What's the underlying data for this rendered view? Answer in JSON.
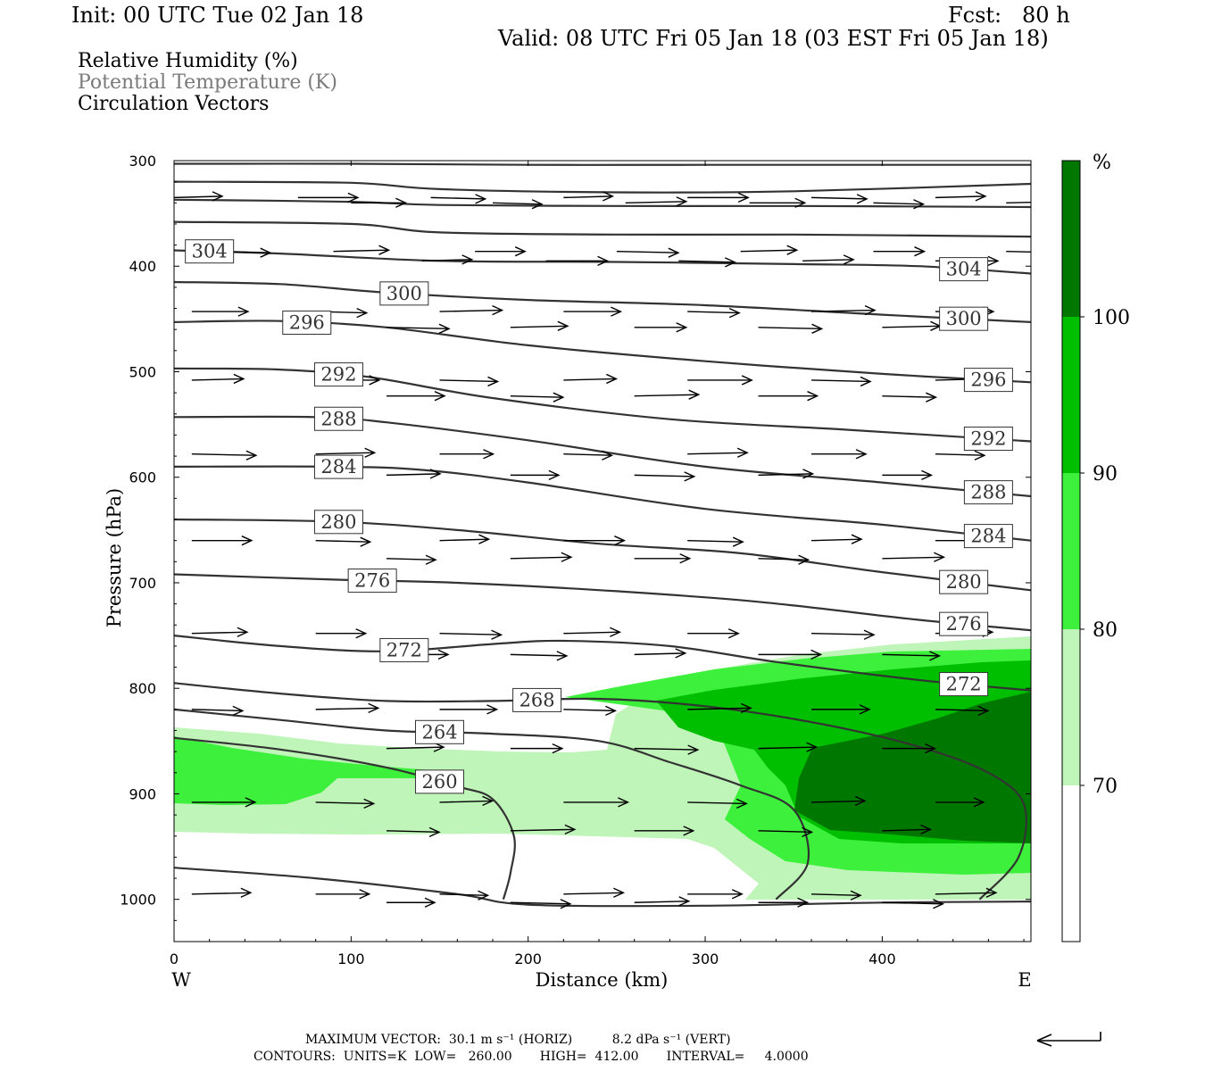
{
  "header": {
    "init": "Init: 00 UTC Tue 02 Jan 18",
    "fcst": "Fcst:   80 h",
    "valid": "Valid: 08 UTC Fri 05 Jan 18 (03 EST Fri 05 Jan 18)"
  },
  "legend": {
    "line1": "Relative Humidity (%)",
    "line2": "Potential Temperature (K)",
    "line3": "Circulation Vectors"
  },
  "footer": {
    "vector_line": "MAXIMUM VECTOR:  30.1 m s⁻¹ (HORIZ)          8.2 dPa s⁻¹ (VERT)",
    "contour_line": "CONTOURS:  UNITS=K  LOW=   260.00       HIGH=  412.00       INTERVAL=     4.0000"
  },
  "colors": {
    "rh_70_80": "#bff5b8",
    "rh_80_90": "#3cf03c",
    "rh_90_100": "#00be00",
    "rh_100": "#007800",
    "theta_line": "#333333",
    "vector": "#000000"
  },
  "chart_data": {
    "type": "contour",
    "x_axis": {
      "label": "Distance (km)",
      "range": [
        0,
        484
      ],
      "ticks": [
        0,
        100,
        200,
        300,
        400
      ],
      "left_end": "W",
      "right_end": "E"
    },
    "y_axis": {
      "label": "Pressure (hPa)",
      "range": [
        300,
        1040
      ],
      "inverted": true,
      "ticks": [
        300,
        400,
        500,
        600,
        700,
        800,
        900,
        1000
      ]
    },
    "colorbar": {
      "unit": "%",
      "levels": [
        70,
        80,
        90,
        100
      ],
      "colors": [
        "#ffffff",
        "#bff5b8",
        "#3cf03c",
        "#00be00",
        "#007800"
      ]
    },
    "theta_contours": [
      {
        "label": "304",
        "labeled": true,
        "points": [
          [
            0,
            385
          ],
          [
            60,
            388
          ],
          [
            150,
            395
          ],
          [
            250,
            396
          ],
          [
            350,
            398
          ],
          [
            420,
            400
          ],
          [
            484,
            407
          ]
        ]
      },
      {
        "label": "300",
        "labeled": true,
        "points": [
          [
            0,
            415
          ],
          [
            60,
            417
          ],
          [
            120,
            425
          ],
          [
            200,
            432
          ],
          [
            300,
            437
          ],
          [
            400,
            446
          ],
          [
            484,
            453
          ]
        ]
      },
      {
        "label": "296",
        "labeled": true,
        "points": [
          [
            0,
            453
          ],
          [
            60,
            452
          ],
          [
            120,
            458
          ],
          [
            200,
            475
          ],
          [
            300,
            490
          ],
          [
            400,
            502
          ],
          [
            484,
            510
          ]
        ]
      },
      {
        "label": "292",
        "labeled": true,
        "points": [
          [
            0,
            497
          ],
          [
            60,
            498
          ],
          [
            110,
            505
          ],
          [
            180,
            525
          ],
          [
            280,
            545
          ],
          [
            380,
            555
          ],
          [
            484,
            566
          ]
        ]
      },
      {
        "label": "288",
        "labeled": true,
        "points": [
          [
            0,
            543
          ],
          [
            80,
            543
          ],
          [
            120,
            548
          ],
          [
            200,
            565
          ],
          [
            300,
            590
          ],
          [
            400,
            605
          ],
          [
            484,
            618
          ]
        ]
      },
      {
        "label": "284",
        "labeled": true,
        "points": [
          [
            0,
            590
          ],
          [
            90,
            590
          ],
          [
            140,
            593
          ],
          [
            200,
            605
          ],
          [
            300,
            630
          ],
          [
            400,
            645
          ],
          [
            484,
            660
          ]
        ]
      },
      {
        "label": "280",
        "labeled": true,
        "points": [
          [
            0,
            640
          ],
          [
            90,
            642
          ],
          [
            160,
            650
          ],
          [
            240,
            663
          ],
          [
            320,
            672
          ],
          [
            400,
            690
          ],
          [
            484,
            707
          ]
        ]
      },
      {
        "label": "276",
        "labeled": true,
        "points": [
          [
            0,
            692
          ],
          [
            90,
            697
          ],
          [
            160,
            700
          ],
          [
            250,
            708
          ],
          [
            330,
            718
          ],
          [
            420,
            735
          ],
          [
            484,
            745
          ]
        ]
      },
      {
        "label": "272",
        "labeled": true,
        "points": [
          [
            0,
            750
          ],
          [
            60,
            760
          ],
          [
            120,
            765
          ],
          [
            180,
            758
          ],
          [
            220,
            755
          ],
          [
            280,
            760
          ],
          [
            340,
            775
          ],
          [
            420,
            792
          ],
          [
            484,
            802
          ]
        ]
      },
      {
        "label": "268",
        "labeled": true,
        "points": [
          [
            0,
            795
          ],
          [
            60,
            805
          ],
          [
            120,
            812
          ],
          [
            180,
            812
          ],
          [
            240,
            810
          ],
          [
            300,
            817
          ],
          [
            360,
            832
          ],
          [
            420,
            855
          ],
          [
            460,
            880
          ],
          [
            480,
            910
          ],
          [
            477,
            960
          ],
          [
            455,
            1000
          ]
        ]
      },
      {
        "label": "264",
        "labeled": true,
        "points": [
          [
            0,
            820
          ],
          [
            60,
            830
          ],
          [
            120,
            840
          ],
          [
            180,
            843
          ],
          [
            240,
            850
          ],
          [
            280,
            870
          ],
          [
            320,
            892
          ],
          [
            350,
            915
          ],
          [
            358,
            965
          ],
          [
            340,
            1000
          ]
        ]
      },
      {
        "label": "260",
        "labeled": true,
        "points": [
          [
            0,
            847
          ],
          [
            60,
            858
          ],
          [
            120,
            875
          ],
          [
            160,
            893
          ],
          [
            180,
            905
          ],
          [
            192,
            940
          ],
          [
            190,
            975
          ],
          [
            186,
            1000
          ]
        ]
      },
      {
        "label": "",
        "labeled": false,
        "points": [
          [
            0,
            970
          ],
          [
            80,
            980
          ],
          [
            160,
            995
          ],
          [
            200,
            1005
          ],
          [
            300,
            1006
          ],
          [
            400,
            1003
          ],
          [
            484,
            1002
          ]
        ]
      },
      {
        "label": "",
        "labeled": false,
        "points": [
          [
            0,
            303
          ],
          [
            100,
            303
          ],
          [
            200,
            304
          ],
          [
            300,
            304
          ],
          [
            400,
            304
          ],
          [
            484,
            304
          ]
        ]
      },
      {
        "label": "",
        "labeled": false,
        "points": [
          [
            0,
            320
          ],
          [
            100,
            321
          ],
          [
            150,
            327
          ],
          [
            250,
            330
          ],
          [
            350,
            329
          ],
          [
            484,
            322
          ]
        ]
      },
      {
        "label": "",
        "labeled": false,
        "points": [
          [
            0,
            337
          ],
          [
            100,
            339
          ],
          [
            150,
            342
          ],
          [
            250,
            343
          ],
          [
            350,
            343
          ],
          [
            484,
            344
          ]
        ]
      },
      {
        "label": "",
        "labeled": false,
        "points": [
          [
            0,
            358
          ],
          [
            100,
            360
          ],
          [
            150,
            368
          ],
          [
            250,
            370
          ],
          [
            350,
            370
          ],
          [
            484,
            372
          ]
        ]
      }
    ],
    "vector_rows": [
      {
        "p": 335,
        "x": [
          0,
          70,
          145,
          220,
          290,
          360,
          430
        ]
      },
      {
        "p": 340,
        "x": [
          100,
          180,
          255,
          325,
          395,
          470
        ]
      },
      {
        "p": 386,
        "x": [
          20,
          90,
          170,
          250,
          320,
          395,
          470
        ]
      },
      {
        "p": 395,
        "x": [
          140,
          210,
          285,
          355,
          430
        ]
      },
      {
        "p": 443,
        "x": [
          10,
          80,
          150,
          220,
          290,
          360,
          430
        ]
      },
      {
        "p": 458,
        "x": [
          120,
          190,
          260,
          330,
          400
        ]
      },
      {
        "p": 508,
        "x": [
          10,
          80,
          150,
          220,
          290,
          360,
          430
        ]
      },
      {
        "p": 523,
        "x": [
          120,
          190,
          260,
          330,
          400
        ]
      },
      {
        "p": 578,
        "x": [
          10,
          80,
          150,
          220,
          290,
          360,
          430
        ]
      },
      {
        "p": 598,
        "x": [
          120,
          190,
          260,
          330,
          400
        ]
      },
      {
        "p": 660,
        "x": [
          10,
          80,
          150,
          220,
          290,
          360,
          430
        ]
      },
      {
        "p": 677,
        "x": [
          120,
          190,
          260,
          330,
          400
        ]
      },
      {
        "p": 748,
        "x": [
          10,
          80,
          150,
          220,
          290,
          360,
          430
        ]
      },
      {
        "p": 768,
        "x": [
          120,
          190,
          260,
          330,
          400
        ]
      },
      {
        "p": 820,
        "x": [
          10,
          80,
          150,
          220,
          290,
          360,
          430
        ]
      },
      {
        "p": 857,
        "x": [
          120,
          190,
          260,
          330,
          400
        ]
      },
      {
        "p": 908,
        "x": [
          10,
          80,
          150,
          220,
          290,
          360,
          430
        ]
      },
      {
        "p": 935,
        "x": [
          120,
          190,
          260,
          330,
          400
        ]
      },
      {
        "p": 995,
        "x": [
          10,
          80,
          150,
          220,
          290,
          360,
          430
        ]
      },
      {
        "p": 1003,
        "x": [
          120,
          190,
          260,
          330,
          400
        ]
      }
    ],
    "max_vector": {
      "horiz": "30.1 m s-1",
      "vert": "8.2 dPa s-1"
    },
    "contour_info": {
      "units": "K",
      "low": 260.0,
      "high": 412.0,
      "interval": 4.0
    }
  }
}
